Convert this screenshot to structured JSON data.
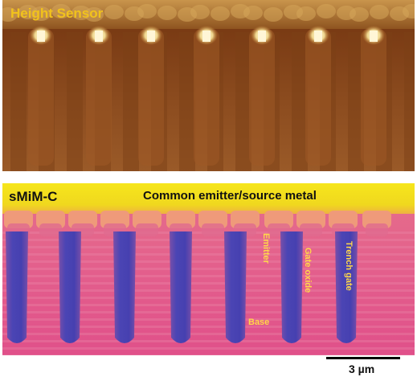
{
  "panels": {
    "height_sensor": {
      "title": "Height Sensor"
    },
    "smim": {
      "title": "sMiM-C",
      "metal_label": "Common emitter/source metal",
      "annotations": {
        "emitter": "Emitter",
        "gate_oxide": "Gate oxide",
        "trench_gate": "Trench gate",
        "base": "Base"
      }
    }
  },
  "scale_bar": {
    "label": "3 µm"
  },
  "colors": {
    "height_base": "#8a4a1e",
    "height_dark": "#4a2208",
    "height_highlight": "#f5e6a0",
    "smim_metal": "#f2e21e",
    "smim_base": "#e2648f",
    "smim_trench": "#4a44b4",
    "smim_cap": "#e89a78",
    "label_yellow": "#ffd84a"
  }
}
